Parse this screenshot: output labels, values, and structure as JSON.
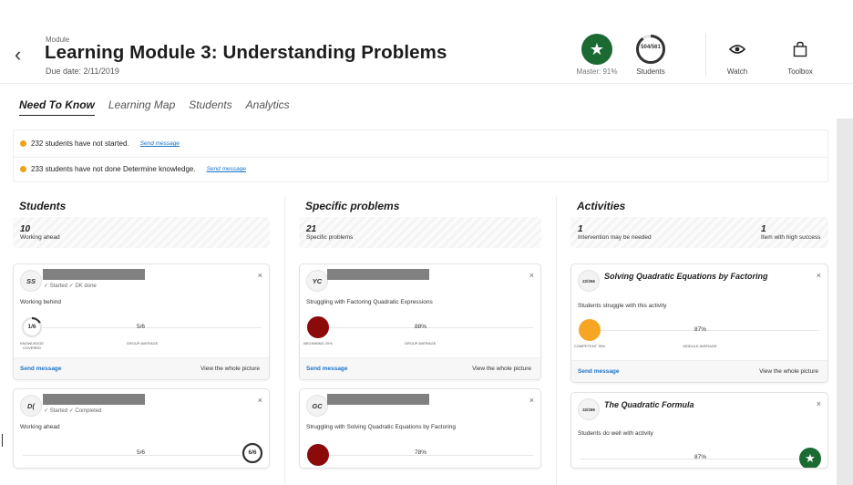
{
  "header": {
    "breadcrumb": "Module",
    "title": "Learning Module 3: Understanding Problems",
    "due_date": "Due date: 2/11/2019",
    "master_label": "Master: 91%",
    "students_ring": "504/561",
    "students_progress": 0.9,
    "students_label": "Students",
    "watch_label": "Watch",
    "toolbox_label": "Toolbox",
    "accent_green": "#1a6a32"
  },
  "tabs": [
    "Need To Know",
    "Learning Map",
    "Students",
    "Analytics"
  ],
  "alerts": [
    {
      "text": "232 students have not started.",
      "link": "Send message"
    },
    {
      "text": "233 students have not done Determine knowledge.",
      "link": "Send message"
    }
  ],
  "columns": {
    "students": {
      "title": "Students",
      "summary": {
        "num": "10",
        "label": "Working ahead"
      },
      "cards": [
        {
          "initials": "SS",
          "tags": "✓ Started  ✓ DK done",
          "status": "Working behind",
          "ring": "1/6",
          "ring_progress": 0.17,
          "ring_caption": "KNOWLEDGE COVERED",
          "avg": "5/6",
          "avg_caption": "GROUP AVERAGE",
          "send": "Send message",
          "view": "View the whole picture"
        },
        {
          "initials": "D(",
          "tags": "✓ Started  ✓ Completed",
          "status": "Working ahead",
          "avg": "5/6",
          "ring": "6/6",
          "ring_progress": 1.0
        }
      ]
    },
    "problems": {
      "title": "Specific problems",
      "summary": {
        "num": "21",
        "label": "Specific problems"
      },
      "cards": [
        {
          "initials": "YC",
          "desc": "Struggling with Factoring Quadratic Expressions",
          "ball_caption": "BEGINNING 20%",
          "avg": "88%",
          "avg_caption": "GROUP AVERAGE",
          "send": "Send message",
          "view": "View the whole picture",
          "color": "#8b0a0a"
        },
        {
          "initials": "GC",
          "desc": "Struggling with Solving Quadratic Equations by Factoring",
          "avg": "78%",
          "color": "#8b0a0a"
        }
      ]
    },
    "activities": {
      "title": "Activities",
      "summary": {
        "num": "1",
        "label": "Intervention may be needed",
        "num2": "1",
        "label2": "Item with high success"
      },
      "cards": [
        {
          "count": "22/266",
          "title": "Solving Quadratic Equations by Factoring",
          "desc": "Students struggle with this activity",
          "ball_caption": "COMPETENT 78%",
          "avg": "87%",
          "avg_caption": "MODULE AVERAGE",
          "send": "Send message",
          "view": "View the whole picture",
          "color": "#f6a623"
        },
        {
          "count": "32/266",
          "title": "The Quadratic Formula",
          "desc": "Students do well with activity",
          "avg": "87%"
        }
      ]
    }
  }
}
